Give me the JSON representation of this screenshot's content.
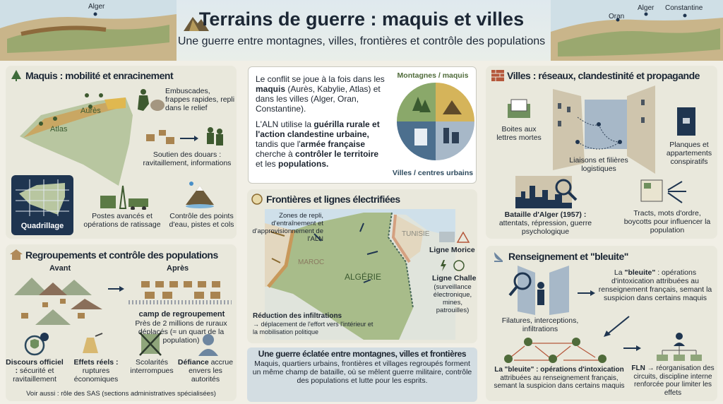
{
  "header": {
    "title": "Terrains de guerre : maquis et villes",
    "subtitle": "Une guerre entre montagnes, villes, frontières et contrôle des populations",
    "map_left_labels": [
      "Alger"
    ],
    "map_right_labels": [
      "Oran",
      "Alger",
      "Constantine"
    ]
  },
  "maquis": {
    "title": "Maquis : mobilité et enracinement",
    "map_labels": [
      "Aurès",
      "Atlas"
    ],
    "ambush": "Embuscades, frappes rapides, repli dans le relief",
    "douars": "Soutien des douars : ravitaillement, informations",
    "quadrillage": "Quadrillage",
    "postes": "Postes avancés et opérations de ratissage",
    "eau": "Contrôle des points d'eau, pistes et cols"
  },
  "intro": {
    "p1_a": "Le conflit se joue à la fois dans les ",
    "p1_b": "maquis",
    "p1_c": " (Aurès, Kabylie, Atlas) et dans les villes (Alger, Oran, Constantine).",
    "p2_a": "L'ALN utilise la ",
    "p2_b": "guérilla rurale et l'action clandestine urbaine,",
    "p2_c": " tandis que l'",
    "p2_d": "armée française",
    "p2_e": " cherche à ",
    "p2_f": "contrôler le territoire",
    "p2_g": " et les ",
    "p2_h": "populations.",
    "circle_top": "Montagnes / maquis",
    "circle_bottom": "Villes / centres urbains"
  },
  "frontieres": {
    "title": "Frontières et lignes électrifiées",
    "zones": "Zones de repli, d'entraînement et d'approvisionnement de l'ALN",
    "maroc": "MAROC",
    "algerie": "ALGÉRIE",
    "tunisie": "TUNISIE",
    "morice": "Ligne Morice",
    "challe": "Ligne Challe",
    "challe_desc": "(surveillance électronique, mines, patrouilles)",
    "reduction": "Réduction des infiltrations",
    "reduction_desc": "→ déplacement de l'effort vers l'intérieur et la mobilisation politique"
  },
  "summary": {
    "title": "Une guerre éclatée entre montagnes, villes et frontières",
    "text": "Maquis, quartiers urbains, frontières et villages regroupés forment un même champ de bataille, où se mêlent guerre militaire, contrôle des populations et lutte pour les esprits."
  },
  "regroupements": {
    "title": "Regroupements et contrôle des populations",
    "avant": "Avant",
    "apres": "Après",
    "camp": "camp de regroupement",
    "camp_desc": "Près de 2 millions de ruraux déplacés (≈ un quart de la population)",
    "items": [
      {
        "bold": "Discours officiel :",
        "text": "sécurité et ravitaillement"
      },
      {
        "bold": "Effets réels :",
        "text": "ruptures économiques"
      },
      {
        "bold": "",
        "text": "Scolarités interrompues"
      },
      {
        "bold": "Défiance",
        "text": "accrue envers les autorités"
      }
    ],
    "voir": "Voir aussi : rôle des SAS (sections administratives spécialisées)"
  },
  "villes": {
    "title": "Villes : réseaux, clandestinité et propagande",
    "boites": "Boites aux lettres mortes",
    "liaisons": "Liaisons et filières logistiques",
    "planques": "Planques et appartements conspiratifs",
    "bataille_bold": "Bataille d'Alger (1957) :",
    "bataille": "attentats, répression, guerre psychologique",
    "tracts": "Tracts, mots d'ordre, boycotts pour influencer la population"
  },
  "renseignement": {
    "title": "Renseignement et \"bleuite\"",
    "filatures": "Filatures, interceptions, infiltrations",
    "bleuite_a": "La ",
    "bleuite_b": "\"bleuite\"",
    "bleuite_c": " : opérations d'intoxication attribuées au renseignement français, semant la suspicion dans certains maquis",
    "bottom_bold": "La \"bleuite\" : opérations d'intoxication",
    "bottom": "attribuées au renseignement français, semant la suspicion dans certains maquis",
    "fln_bold": "FLN →",
    "fln": " réorganisation des circuits, discipline interne renforcée pour limiter les effets"
  },
  "colors": {
    "green": "#5b7a45",
    "sand": "#d8b870",
    "navy": "#1f3550",
    "brick": "#b5573b",
    "panel": "#e9e8dc"
  }
}
